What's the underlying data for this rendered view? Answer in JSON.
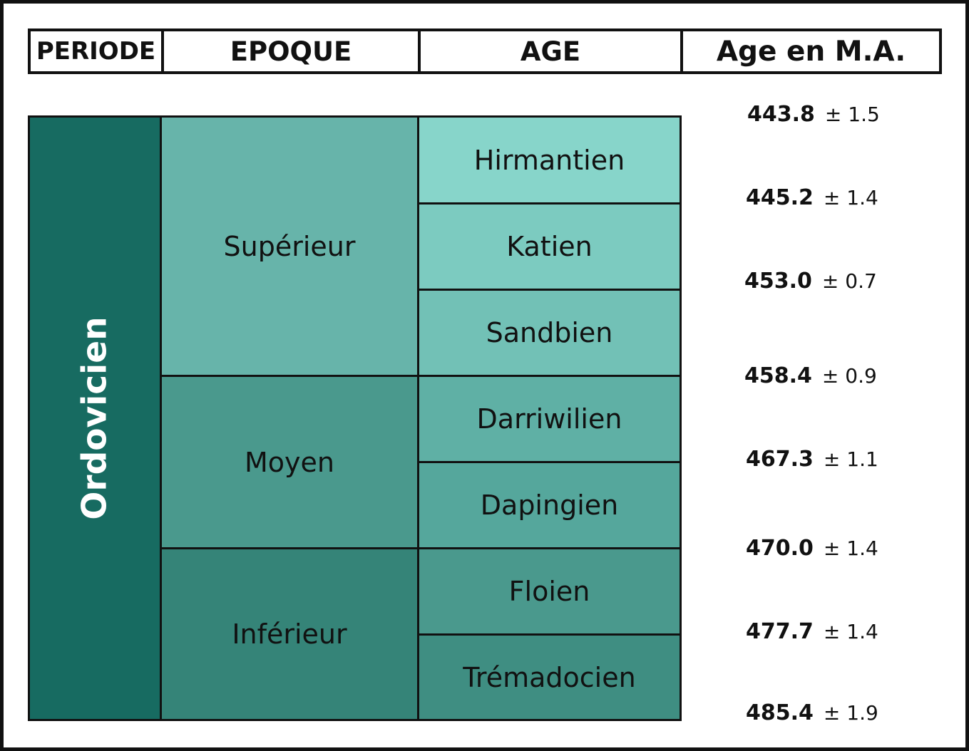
{
  "headers": {
    "period": "PERIODE",
    "epoch": "EPOQUE",
    "age": "AGE",
    "age_ma": "Age en M.A."
  },
  "period": {
    "label": "Ordovicien",
    "color": "#176b61"
  },
  "epochs": [
    {
      "label": "Supérieur",
      "color": "#67b4aa"
    },
    {
      "label": "Moyen",
      "color": "#4a998d"
    },
    {
      "label": "Inférieur",
      "color": "#358478"
    }
  ],
  "stages": [
    {
      "label": "Hirmantien",
      "color": "#87d5ca"
    },
    {
      "label": "Katien",
      "color": "#7ccbc0"
    },
    {
      "label": "Sandbien",
      "color": "#72c1b6"
    },
    {
      "label": "Darriwilien",
      "color": "#5fb0a5"
    },
    {
      "label": "Dapingien",
      "color": "#55a79c"
    },
    {
      "label": "Floien",
      "color": "#4a998d"
    },
    {
      "label": "Trémadocien",
      "color": "#3f8e82"
    }
  ],
  "boundaries": [
    {
      "value": "443.8",
      "error": "± 1.5"
    },
    {
      "value": "445.2",
      "error": "± 1.4"
    },
    {
      "value": "453.0",
      "error": "± 0.7"
    },
    {
      "value": "458.4",
      "error": "± 0.9"
    },
    {
      "value": "467.3",
      "error": "± 1.1"
    },
    {
      "value": "470.0",
      "error": "± 1.4"
    },
    {
      "value": "477.7",
      "error": "± 1.4"
    },
    {
      "value": "485.4",
      "error": "± 1.9"
    }
  ]
}
